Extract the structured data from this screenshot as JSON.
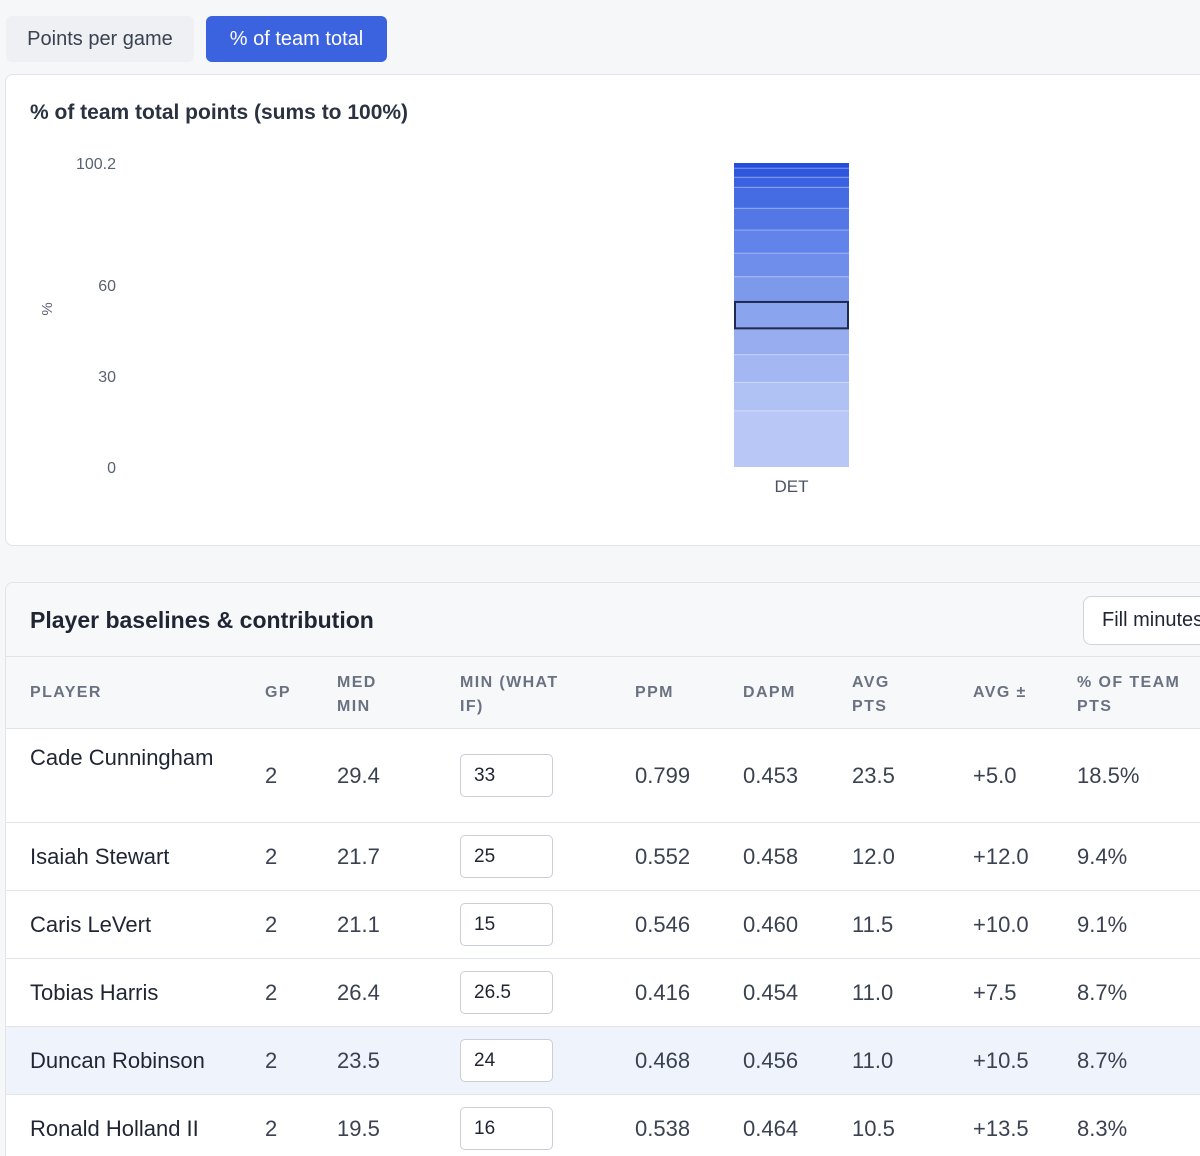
{
  "toggles": {
    "points_per_game": "Points per game",
    "pct_team_total": "% of team total"
  },
  "colors": {
    "accent": "#3b63e0",
    "highlight_row": "#eff3fc"
  },
  "chart_data": {
    "type": "bar",
    "stacked": true,
    "title": "% of team total points (sums to 100%)",
    "categories": [
      "DET"
    ],
    "ylabel": "%",
    "ylim": [
      0,
      100.2
    ],
    "yticks": [
      0,
      30,
      60,
      100.2
    ],
    "segments": [
      {
        "value": 18.5,
        "color": "#b8c7f5"
      },
      {
        "value": 9.4,
        "color": "#b0c1f4"
      },
      {
        "value": 9.1,
        "color": "#a4b7f2"
      },
      {
        "value": 8.7,
        "color": "#98adf0"
      },
      {
        "value": 8.7,
        "color": "#8ba4ee",
        "highlighted": true
      },
      {
        "value": 8.3,
        "color": "#7d99ec"
      },
      {
        "value": 7.8,
        "color": "#6f8deb"
      },
      {
        "value": 7.6,
        "color": "#6283e9"
      },
      {
        "value": 7.2,
        "color": "#5477e6"
      },
      {
        "value": 6.9,
        "color": "#466ce4"
      },
      {
        "value": 3.3,
        "color": "#3a61e1"
      },
      {
        "value": 3.0,
        "color": "#2f57de"
      },
      {
        "value": 1.7,
        "color": "#254ddb"
      }
    ]
  },
  "table": {
    "title": "Player baselines & contribution",
    "fill_button": "Fill minutes",
    "columns": {
      "player": "PLAYER",
      "gp": "GP",
      "med_min_1": "MED",
      "med_min_2": "MIN",
      "min_whatif_1": "MIN (WHAT",
      "min_whatif_2": "IF)",
      "ppm": "PPM",
      "dapm": "DAPM",
      "avg_pts_1": "AVG",
      "avg_pts_2": "PTS",
      "avg_pm": "AVG ±",
      "pct_team_1": "% OF TEAM",
      "pct_team_2": "PTS"
    },
    "rows": [
      {
        "player": "Cade Cunningham",
        "gp": "2",
        "med_min": "29.4",
        "min_whatif": "33",
        "ppm": "0.799",
        "dapm": "0.453",
        "avg_pts": "23.5",
        "avg_pm": "+5.0",
        "pct_team": "18.5%"
      },
      {
        "player": "Isaiah Stewart",
        "gp": "2",
        "med_min": "21.7",
        "min_whatif": "25",
        "ppm": "0.552",
        "dapm": "0.458",
        "avg_pts": "12.0",
        "avg_pm": "+12.0",
        "pct_team": "9.4%"
      },
      {
        "player": "Caris LeVert",
        "gp": "2",
        "med_min": "21.1",
        "min_whatif": "15",
        "ppm": "0.546",
        "dapm": "0.460",
        "avg_pts": "11.5",
        "avg_pm": "+10.0",
        "pct_team": "9.1%"
      },
      {
        "player": "Tobias Harris",
        "gp": "2",
        "med_min": "26.4",
        "min_whatif": "26.5",
        "ppm": "0.416",
        "dapm": "0.454",
        "avg_pts": "11.0",
        "avg_pm": "+7.5",
        "pct_team": "8.7%"
      },
      {
        "player": "Duncan Robinson",
        "gp": "2",
        "med_min": "23.5",
        "min_whatif": "24",
        "ppm": "0.468",
        "dapm": "0.456",
        "avg_pts": "11.0",
        "avg_pm": "+10.5",
        "pct_team": "8.7%"
      },
      {
        "player": "Ronald Holland II",
        "gp": "2",
        "med_min": "19.5",
        "min_whatif": "16",
        "ppm": "0.538",
        "dapm": "0.464",
        "avg_pts": "10.5",
        "avg_pm": "+13.5",
        "pct_team": "8.3%"
      }
    ]
  }
}
